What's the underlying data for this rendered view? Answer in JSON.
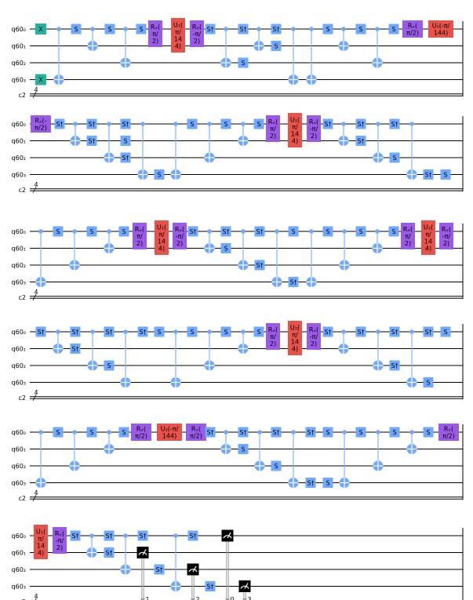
{
  "colors": {
    "s_gate": "#6fa8ff",
    "rx_gate": "#9a59e6",
    "u1_gate": "#e8524a",
    "x_gate": "#22b2a0",
    "control": "#6fa8ff",
    "measure": "#000000"
  },
  "wire_labels": {
    "q0": "q60₀",
    "q1": "q60₁",
    "q2": "q60₂",
    "q3": "q60₃",
    "c": "c2",
    "c_width": "4"
  },
  "gate_labels": {
    "x": "X",
    "s": "S",
    "sdg": "S†",
    "rx_pos": [
      "Rₓ(",
      "π/",
      "2)"
    ],
    "rx_neg": [
      "Rₓ(",
      "-π/",
      "2)"
    ],
    "rx_neg_wide": [
      "Rₓ(-",
      "π/2)"
    ],
    "rx_pos_wide": [
      "Rₓ(",
      "π/2)"
    ],
    "u1_pi14": [
      "U₁(",
      "π/",
      "14",
      "4)"
    ],
    "u1_neg_wide": [
      "U₁(-π/",
      "144)"
    ]
  },
  "measure_bits": [
    "1",
    "2",
    "0",
    "3"
  ]
}
